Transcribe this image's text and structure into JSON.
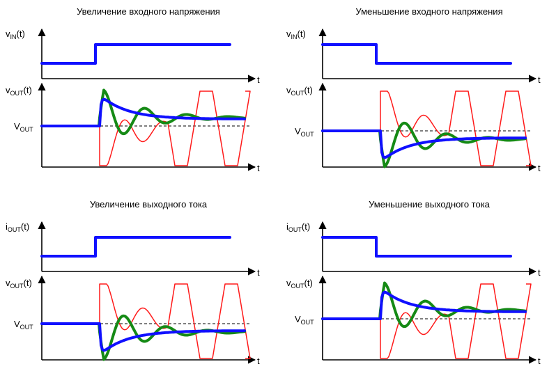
{
  "panels": [
    {
      "title": "Увеличение входного напряжения",
      "top_label_main": "v",
      "top_label_sub": "IN",
      "top_label_tail": "(t)",
      "bottom_label_main": "v",
      "bottom_label_sub": "OUT",
      "bottom_label_tail": "(t)",
      "ref_label_main": "V",
      "ref_label_sub": "OUT",
      "axis_label": "t",
      "input_direction": "up",
      "output_direction": "up"
    },
    {
      "title": "Уменьшение входного напряжения",
      "top_label_main": "v",
      "top_label_sub": "IN",
      "top_label_tail": "(t)",
      "bottom_label_main": "v",
      "bottom_label_sub": "OUT",
      "bottom_label_tail": "(t)",
      "ref_label_main": "V",
      "ref_label_sub": "OUT",
      "axis_label": "t",
      "input_direction": "down",
      "output_direction": "down"
    },
    {
      "title": "Увеличение выходного тока",
      "top_label_main": "i",
      "top_label_sub": "OUT",
      "top_label_tail": "(t)",
      "bottom_label_main": "v",
      "bottom_label_sub": "OUT",
      "bottom_label_tail": "(t)",
      "ref_label_main": "V",
      "ref_label_sub": "OUT",
      "axis_label": "t",
      "input_direction": "up",
      "output_direction": "down"
    },
    {
      "title": "Уменьшение выходного тока",
      "top_label_main": "i",
      "top_label_sub": "OUT",
      "top_label_tail": "(t)",
      "bottom_label_main": "v",
      "bottom_label_sub": "OUT",
      "bottom_label_tail": "(t)",
      "ref_label_main": "V",
      "ref_label_sub": "OUT",
      "axis_label": "t",
      "input_direction": "down",
      "output_direction": "up"
    }
  ],
  "colors": {
    "step_and_damped_response": "#1010ff",
    "moderate_ringing_response": "#158a15",
    "switching_waveform": "#ff1a1a",
    "axes": "#000000"
  }
}
